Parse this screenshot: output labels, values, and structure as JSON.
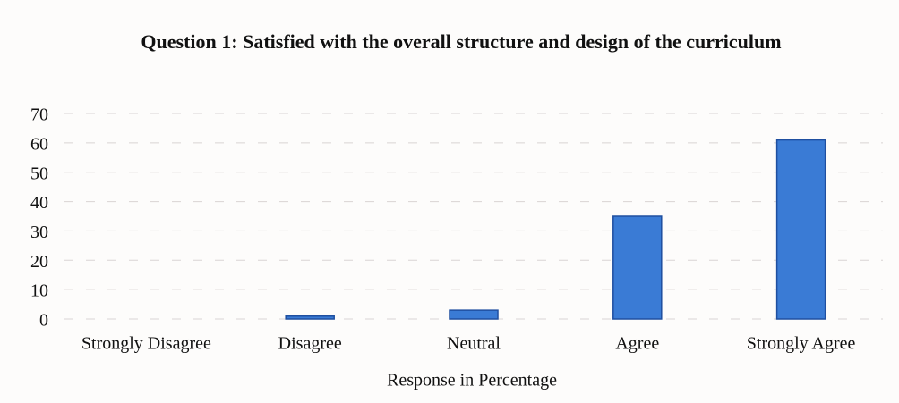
{
  "chart_data": {
    "type": "bar",
    "title": "Question 1: Satisfied with the overall structure and design of the curriculum",
    "x_label": "Response in Percentage",
    "categories": [
      "Strongly Disagree",
      "Disagree",
      "Neutral",
      "Agree",
      "Strongly Agree"
    ],
    "values": [
      0,
      1,
      3,
      35,
      61
    ],
    "color": "#3a7bd5",
    "ylim": [
      0,
      70
    ],
    "yticks": [
      0,
      10,
      20,
      30,
      40,
      50,
      60,
      70
    ],
    "grid": true
  }
}
